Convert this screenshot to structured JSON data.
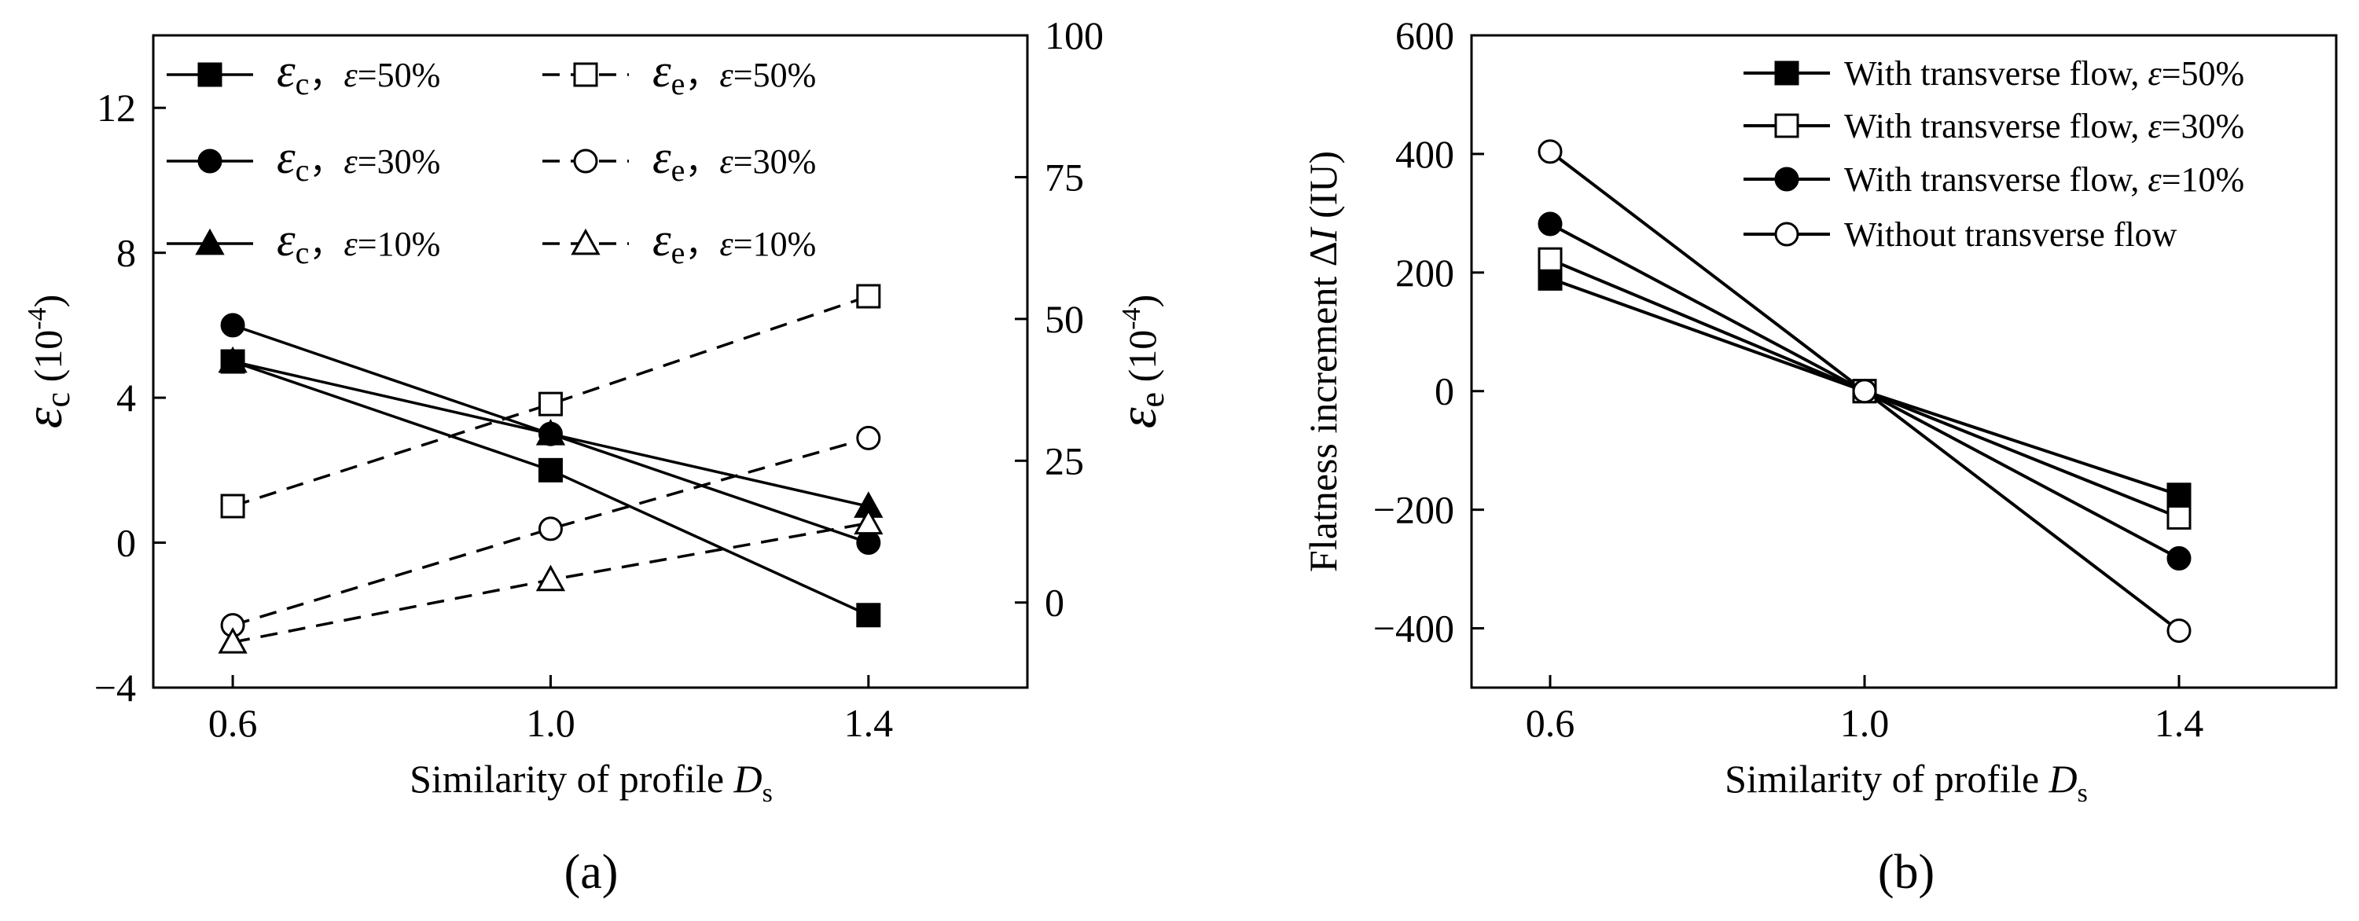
{
  "figure": {
    "panel_a_label": "(a)",
    "panel_b_label": "(b)"
  },
  "chart_data": [
    {
      "panel": "a",
      "type": "line",
      "xlabel": "Similarity of profile D_s",
      "x_ticks": [
        "0.6",
        "1.0",
        "1.4"
      ],
      "xlim": [
        0.5,
        1.6
      ],
      "x": [
        0.6,
        1.0,
        1.4
      ],
      "ylabel_left": "εc (10^-4)",
      "ylim_left": [
        -4,
        14
      ],
      "yticks_left": [
        "−4",
        "0",
        "4",
        "8",
        "12"
      ],
      "ylabel_right": "εe (10^-4)",
      "ylim_right": [
        -15,
        100
      ],
      "yticks_right": [
        "0",
        "25",
        "50",
        "75",
        "100"
      ],
      "series": [
        {
          "name": "εc, ε=50%",
          "axis": "left",
          "dash": "solid",
          "marker": "square-filled",
          "values": [
            5,
            2,
            -2
          ]
        },
        {
          "name": "εc, ε=30%",
          "axis": "left",
          "dash": "solid",
          "marker": "circle-filled",
          "values": [
            6,
            3,
            0
          ]
        },
        {
          "name": "εc, ε=10%",
          "axis": "left",
          "dash": "solid",
          "marker": "triangle-filled",
          "values": [
            5,
            3,
            1
          ]
        },
        {
          "name": "εe, ε=50%",
          "axis": "right",
          "dash": "dashed",
          "marker": "square-open",
          "values": [
            17,
            35,
            54
          ]
        },
        {
          "name": "εe, ε=30%",
          "axis": "right",
          "dash": "dashed",
          "marker": "circle-open",
          "values": [
            -4,
            13,
            29
          ]
        },
        {
          "name": "εe, ε=10%",
          "axis": "right",
          "dash": "dashed",
          "marker": "triangle-open",
          "values": [
            -7,
            4,
            14
          ]
        }
      ],
      "legend": [
        {
          "symbol": "εc",
          "sub": "c",
          "param": "ε=50%"
        },
        {
          "symbol": "εc",
          "sub": "c",
          "param": "ε=30%"
        },
        {
          "symbol": "εc",
          "sub": "c",
          "param": "ε=10%"
        },
        {
          "symbol": "εe",
          "sub": "e",
          "param": "ε=50%"
        },
        {
          "symbol": "εe",
          "sub": "e",
          "param": "ε=30%"
        },
        {
          "symbol": "εe",
          "sub": "e",
          "param": "ε=10%"
        }
      ]
    },
    {
      "panel": "b",
      "type": "line",
      "xlabel": "Similarity of profile D_s",
      "x_ticks": [
        "0.6",
        "1.0",
        "1.4"
      ],
      "xlim": [
        0.5,
        1.6
      ],
      "x": [
        0.6,
        1.0,
        1.4
      ],
      "ylabel": "Flatness increment ΔI (IU)",
      "ylim": [
        -500,
        600
      ],
      "yticks": [
        "−400",
        "−200",
        "0",
        "200",
        "400",
        "600"
      ],
      "series": [
        {
          "name": "With transverse flow, ε=50%",
          "marker": "square-filled",
          "values": [
            190,
            0,
            -175
          ]
        },
        {
          "name": "With transverse flow, ε=30%",
          "marker": "square-open",
          "values": [
            222,
            0,
            -213
          ]
        },
        {
          "name": "With transverse flow, ε=10%",
          "marker": "circle-filled",
          "values": [
            282,
            0,
            -282
          ]
        },
        {
          "name": "Without transverse flow",
          "marker": "circle-open",
          "values": [
            404,
            0,
            -404
          ]
        }
      ],
      "legend": [
        {
          "text": "With transverse flow, ",
          "param": "ε=50%"
        },
        {
          "text": "With transverse flow, ",
          "param": "ε=30%"
        },
        {
          "text": "With transverse flow, ",
          "param": "ε=10%"
        },
        {
          "text": "Without transverse flow",
          "param": ""
        }
      ]
    }
  ]
}
